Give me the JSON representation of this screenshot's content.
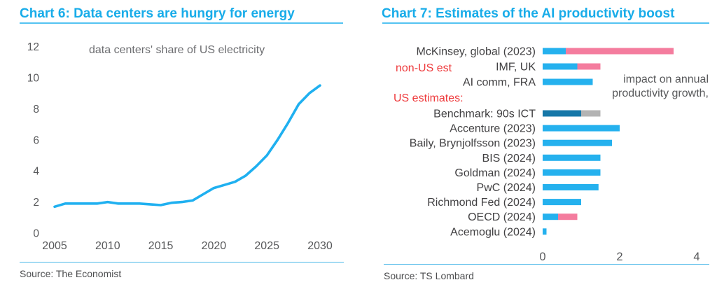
{
  "left_panel": {
    "title": "Chart 6: Data centers are hungry for energy",
    "annotation": "data centers' share of US electricity",
    "source": "Source: The Economist"
  },
  "right_panel": {
    "title": "Chart 7: Estimates of the AI productivity boost",
    "label_non_us": "non-US est",
    "label_us": "US estimates:",
    "annotation_line1": "impact on annual",
    "annotation_line2": "productivity growth,",
    "source": "Source: TS Lombard"
  },
  "colors": {
    "title_blue": "#18ace9",
    "rule_blue": "#54c3f1",
    "line_blue": "#1fb0f0",
    "bar_blue": "#25b1ee",
    "bar_pink": "#f47c9e",
    "bar_teal": "#1677a8",
    "bar_gray": "#b3b3b3",
    "red_text": "#ee3a3c",
    "tick_gray": "#58595b"
  },
  "chart_data": [
    {
      "type": "line",
      "title": "data centers' share of US electricity",
      "x": [
        2005,
        2006,
        2007,
        2008,
        2009,
        2010,
        2011,
        2012,
        2013,
        2014,
        2015,
        2016,
        2017,
        2018,
        2019,
        2020,
        2021,
        2022,
        2023,
        2024,
        2025,
        2026,
        2027,
        2028,
        2029,
        2030
      ],
      "values": [
        1.7,
        1.9,
        1.9,
        1.9,
        1.9,
        2.0,
        1.9,
        1.9,
        1.9,
        1.85,
        1.8,
        1.95,
        2.0,
        2.1,
        2.5,
        2.9,
        3.1,
        3.3,
        3.7,
        4.3,
        5.0,
        6.0,
        7.1,
        8.3,
        9.0,
        9.5
      ],
      "xticks": [
        2005,
        2010,
        2015,
        2020,
        2025,
        2030
      ],
      "yticks": [
        0,
        2,
        4,
        6,
        8,
        10,
        12
      ],
      "xlim": [
        2005,
        2030
      ],
      "ylim": [
        0,
        12
      ],
      "grid": false,
      "legend": "none",
      "line_color": "#1fb0f0"
    },
    {
      "type": "bar",
      "orientation": "horizontal",
      "xlabel_note": "impact on annual productivity growth,",
      "xticks": [
        0,
        2,
        4
      ],
      "xlim": [
        0,
        4.4
      ],
      "grid": false,
      "bars": [
        {
          "label": "McKinsey, global (2023)",
          "group": "non_us",
          "segments": [
            {
              "value": 0.6,
              "color": "#25b1ee"
            },
            {
              "value": 2.8,
              "color": "#f47c9e"
            }
          ]
        },
        {
          "label": "IMF, UK",
          "group": "non_us",
          "segments": [
            {
              "value": 0.9,
              "color": "#25b1ee"
            },
            {
              "value": 0.6,
              "color": "#f47c9e"
            }
          ]
        },
        {
          "label": "AI comm, FRA",
          "group": "non_us",
          "segments": [
            {
              "value": 1.3,
              "color": "#25b1ee"
            }
          ]
        },
        {
          "label": "Benchmark: 90s ICT",
          "group": "us",
          "segments": [
            {
              "value": 1.0,
              "color": "#1677a8"
            },
            {
              "value": 0.5,
              "color": "#b3b3b3"
            }
          ]
        },
        {
          "label": "Accenture (2023)",
          "group": "us",
          "segments": [
            {
              "value": 2.0,
              "color": "#25b1ee"
            }
          ]
        },
        {
          "label": "Baily, Brynjolfsson (2023)",
          "group": "us",
          "segments": [
            {
              "value": 1.8,
              "color": "#25b1ee"
            }
          ]
        },
        {
          "label": "BIS (2024)",
          "group": "us",
          "segments": [
            {
              "value": 1.5,
              "color": "#25b1ee"
            }
          ]
        },
        {
          "label": "Goldman (2024)",
          "group": "us",
          "segments": [
            {
              "value": 1.5,
              "color": "#25b1ee"
            }
          ]
        },
        {
          "label": "PwC (2024)",
          "group": "us",
          "segments": [
            {
              "value": 1.45,
              "color": "#25b1ee"
            }
          ]
        },
        {
          "label": "Richmond Fed (2024)",
          "group": "us",
          "segments": [
            {
              "value": 1.0,
              "color": "#25b1ee"
            }
          ]
        },
        {
          "label": "OECD (2024)",
          "group": "us",
          "segments": [
            {
              "value": 0.4,
              "color": "#25b1ee"
            },
            {
              "value": 0.5,
              "color": "#f47c9e"
            }
          ]
        },
        {
          "label": "Acemoglu (2024)",
          "group": "us",
          "segments": [
            {
              "value": 0.1,
              "color": "#25b1ee"
            }
          ]
        }
      ]
    }
  ]
}
